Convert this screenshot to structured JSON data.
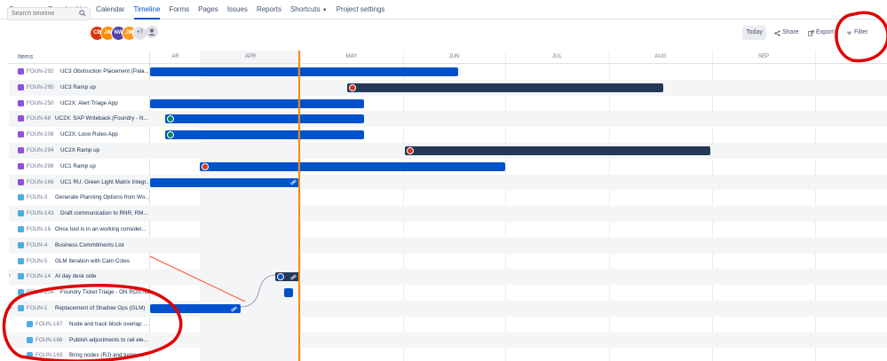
{
  "nav": {
    "tabs": [
      {
        "label": "Summary"
      },
      {
        "label": "Board"
      },
      {
        "label": "List"
      },
      {
        "label": "Calendar"
      },
      {
        "label": "Timeline"
      },
      {
        "label": "Forms"
      },
      {
        "label": "Pages"
      },
      {
        "label": "Issues"
      },
      {
        "label": "Reports"
      },
      {
        "label": "Shortcuts"
      },
      {
        "label": "Project settings"
      }
    ],
    "active": "Timeline"
  },
  "toolbar": {
    "search_placeholder": "Search timeline",
    "avatars": [
      {
        "initials": "CB",
        "color": "#de350b"
      },
      {
        "initials": "JW",
        "color": "#ff8b00"
      },
      {
        "initials": "NW",
        "color": "#5243aa"
      },
      {
        "initials": "JM",
        "color": "#ff991f"
      }
    ],
    "avatars_more": "+7",
    "today_label": "Today",
    "share_label": "Share",
    "export_label": "Export",
    "filter_label": "Filter"
  },
  "timeline": {
    "items_header": "Items",
    "months": [
      "AR",
      "APR",
      "MAY",
      "JUN",
      "JUL",
      "AUG",
      "SEP"
    ]
  },
  "rows": [
    {
      "key": "FOUN-292",
      "summary": "UC3 Obstruction Placement (Pala...",
      "type": "epic"
    },
    {
      "key": "FOUN-295",
      "summary": "UC3 Ramp up",
      "type": "epic"
    },
    {
      "key": "FOUN-250",
      "summary": "UC2X: Alert Triage App",
      "type": "epic"
    },
    {
      "key": "FOUN-68",
      "summary": "UC2X: SAP Writeback (Foundry - N...",
      "type": "epic"
    },
    {
      "key": "FOUN-108",
      "summary": "UC2X: Looo Rules App",
      "type": "epic"
    },
    {
      "key": "FOUN-294",
      "summary": "UC2X Ramp up",
      "type": "epic"
    },
    {
      "key": "FOUN-298",
      "summary": "UC1 Ramp up",
      "type": "epic"
    },
    {
      "key": "FOUN-166",
      "summary": "UC1 RU: Green Light Matrix Integr...",
      "type": "epic"
    },
    {
      "key": "FOUN-3",
      "summary": "Generate Planning Options from Wo...",
      "type": "task"
    },
    {
      "key": "FOUN-143",
      "summary": "Draft communication to RNR, RM...",
      "type": "task"
    },
    {
      "key": "FOUN-16",
      "summary": "Once tool is in an working consider...",
      "type": "task"
    },
    {
      "key": "FOUN-4",
      "summary": "Business Commitments List",
      "type": "task"
    },
    {
      "key": "FOUN-5",
      "summary": "GLM Iteration with Cam Coles",
      "type": "task"
    },
    {
      "key": "FOUN-14",
      "summary": "AI day desk side",
      "type": "task"
    },
    {
      "key": "FOUN-204",
      "summary": "Foundry Ticket Triage - ON ROSTER",
      "type": "task"
    },
    {
      "key": "FOUN-1",
      "summary": "Replacement of Shadow Ops (GLM)",
      "type": "task"
    },
    {
      "key": "FOUN-167",
      "summary": "Node and track block overlap ...",
      "type": "sub"
    },
    {
      "key": "FOUN-168",
      "summary": "Publish adjustments to rail ele...",
      "type": "sub"
    },
    {
      "key": "FOUN-169",
      "summary": "Bring nodes (RJ) and turnou...",
      "type": "sub"
    }
  ],
  "colors": {
    "bar_blue": "#0052cc",
    "bar_dark": "#253858",
    "today_line": "#ff8b00",
    "annotation": "#e00000"
  }
}
